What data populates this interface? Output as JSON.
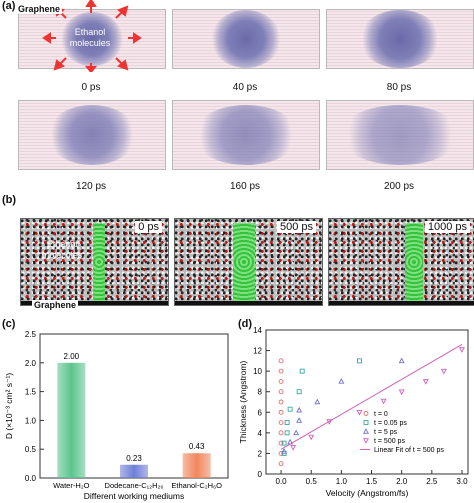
{
  "panel_a": {
    "label": "(a)",
    "graphene_label": "Graphene",
    "molecule_label": "Ethanol molecules",
    "times": [
      "0 ps",
      "40 ps",
      "80 ps",
      "120 ps",
      "160 ps",
      "200 ps"
    ]
  },
  "panel_b": {
    "label": "(b)",
    "molecule_label": "Ethanol molecules",
    "graphene_label": "Graphene",
    "times": [
      "0 ps",
      "500 ps",
      "1000 ps"
    ]
  },
  "panel_c": {
    "label": "(c)",
    "ylabel": "D (×10⁻³ cm² s⁻¹)",
    "xlabel": "Different working mediums",
    "colors": [
      "#5cc48e",
      "#6e7fd6",
      "#f0875e"
    ]
  },
  "panel_d": {
    "label": "(d)",
    "xlabel": "Velocity (Angstrom/fs)",
    "ylabel": "Thickness (Angstrom)",
    "colors": [
      "#e07070",
      "#3aa8a0",
      "#7070d0",
      "#d060b8",
      "#d060b8"
    ]
  },
  "chart_data": [
    {
      "type": "bar",
      "title": "",
      "xlabel": "Different working mediums",
      "ylabel": "D (×10⁻³ cm² s⁻¹)",
      "categories": [
        "Water-H₂O",
        "Dodecane-C₁₂H₂₆",
        "Ethanol-C₂H₆O"
      ],
      "values": [
        2.0,
        0.23,
        0.43
      ],
      "value_labels": [
        "2.00",
        "0.23",
        "0.43"
      ],
      "ylim": [
        0,
        2.5
      ],
      "yticks": [
        "0.0",
        "0.5",
        "1.0",
        "1.5",
        "2.0",
        "2.5"
      ],
      "grid": false
    },
    {
      "type": "scatter",
      "title": "",
      "xlabel": "Velocity (Angstrom/fs)",
      "ylabel": "Thickness (Angstrom)",
      "xlim": [
        -0.25,
        3.1
      ],
      "ylim": [
        0,
        14
      ],
      "xticks": [
        "0.0",
        "0.5",
        "1.0",
        "1.5",
        "2.0",
        "2.5",
        "3.0"
      ],
      "yticks": [
        "0",
        "2",
        "4",
        "6",
        "8",
        "10",
        "12",
        "14"
      ],
      "legend_position": "bottom-right",
      "series": [
        {
          "name": "t = 0",
          "marker": "circle",
          "points": [
            [
              0,
              1
            ],
            [
              0,
              2
            ],
            [
              0,
              3
            ],
            [
              0,
              4
            ],
            [
              0,
              5
            ],
            [
              0,
              6
            ],
            [
              0,
              7
            ],
            [
              0,
              8
            ],
            [
              0,
              9
            ],
            [
              0,
              10
            ],
            [
              0,
              11
            ]
          ]
        },
        {
          "name": "t = 0.05 ps",
          "marker": "square",
          "points": [
            [
              0.05,
              2
            ],
            [
              0.05,
              3
            ],
            [
              0.1,
              4
            ],
            [
              0.1,
              5
            ],
            [
              0.15,
              6.3
            ],
            [
              0.3,
              8
            ],
            [
              0.35,
              10
            ],
            [
              1.3,
              11
            ]
          ]
        },
        {
          "name": "t = 5 ps",
          "marker": "triangle",
          "points": [
            [
              0.05,
              2.2
            ],
            [
              0.15,
              3.1
            ],
            [
              0.25,
              4
            ],
            [
              0.3,
              5.2
            ],
            [
              0.3,
              6.2
            ],
            [
              0.6,
              7
            ],
            [
              1.0,
              9
            ],
            [
              2.0,
              11
            ]
          ]
        },
        {
          "name": "t = 500 ps",
          "marker": "triangle-down",
          "points": [
            [
              0.2,
              2.6
            ],
            [
              0.5,
              3.6
            ],
            [
              0.8,
              5.1
            ],
            [
              1.3,
              6
            ],
            [
              1.7,
              7.1
            ],
            [
              2.0,
              8
            ],
            [
              2.4,
              9
            ],
            [
              2.7,
              10
            ],
            [
              3.0,
              12.1
            ]
          ]
        },
        {
          "name": "Linear Fit of t = 500 ps",
          "type": "line",
          "points": [
            [
              0,
              2.4
            ],
            [
              3.0,
              12.6
            ]
          ]
        }
      ]
    }
  ]
}
